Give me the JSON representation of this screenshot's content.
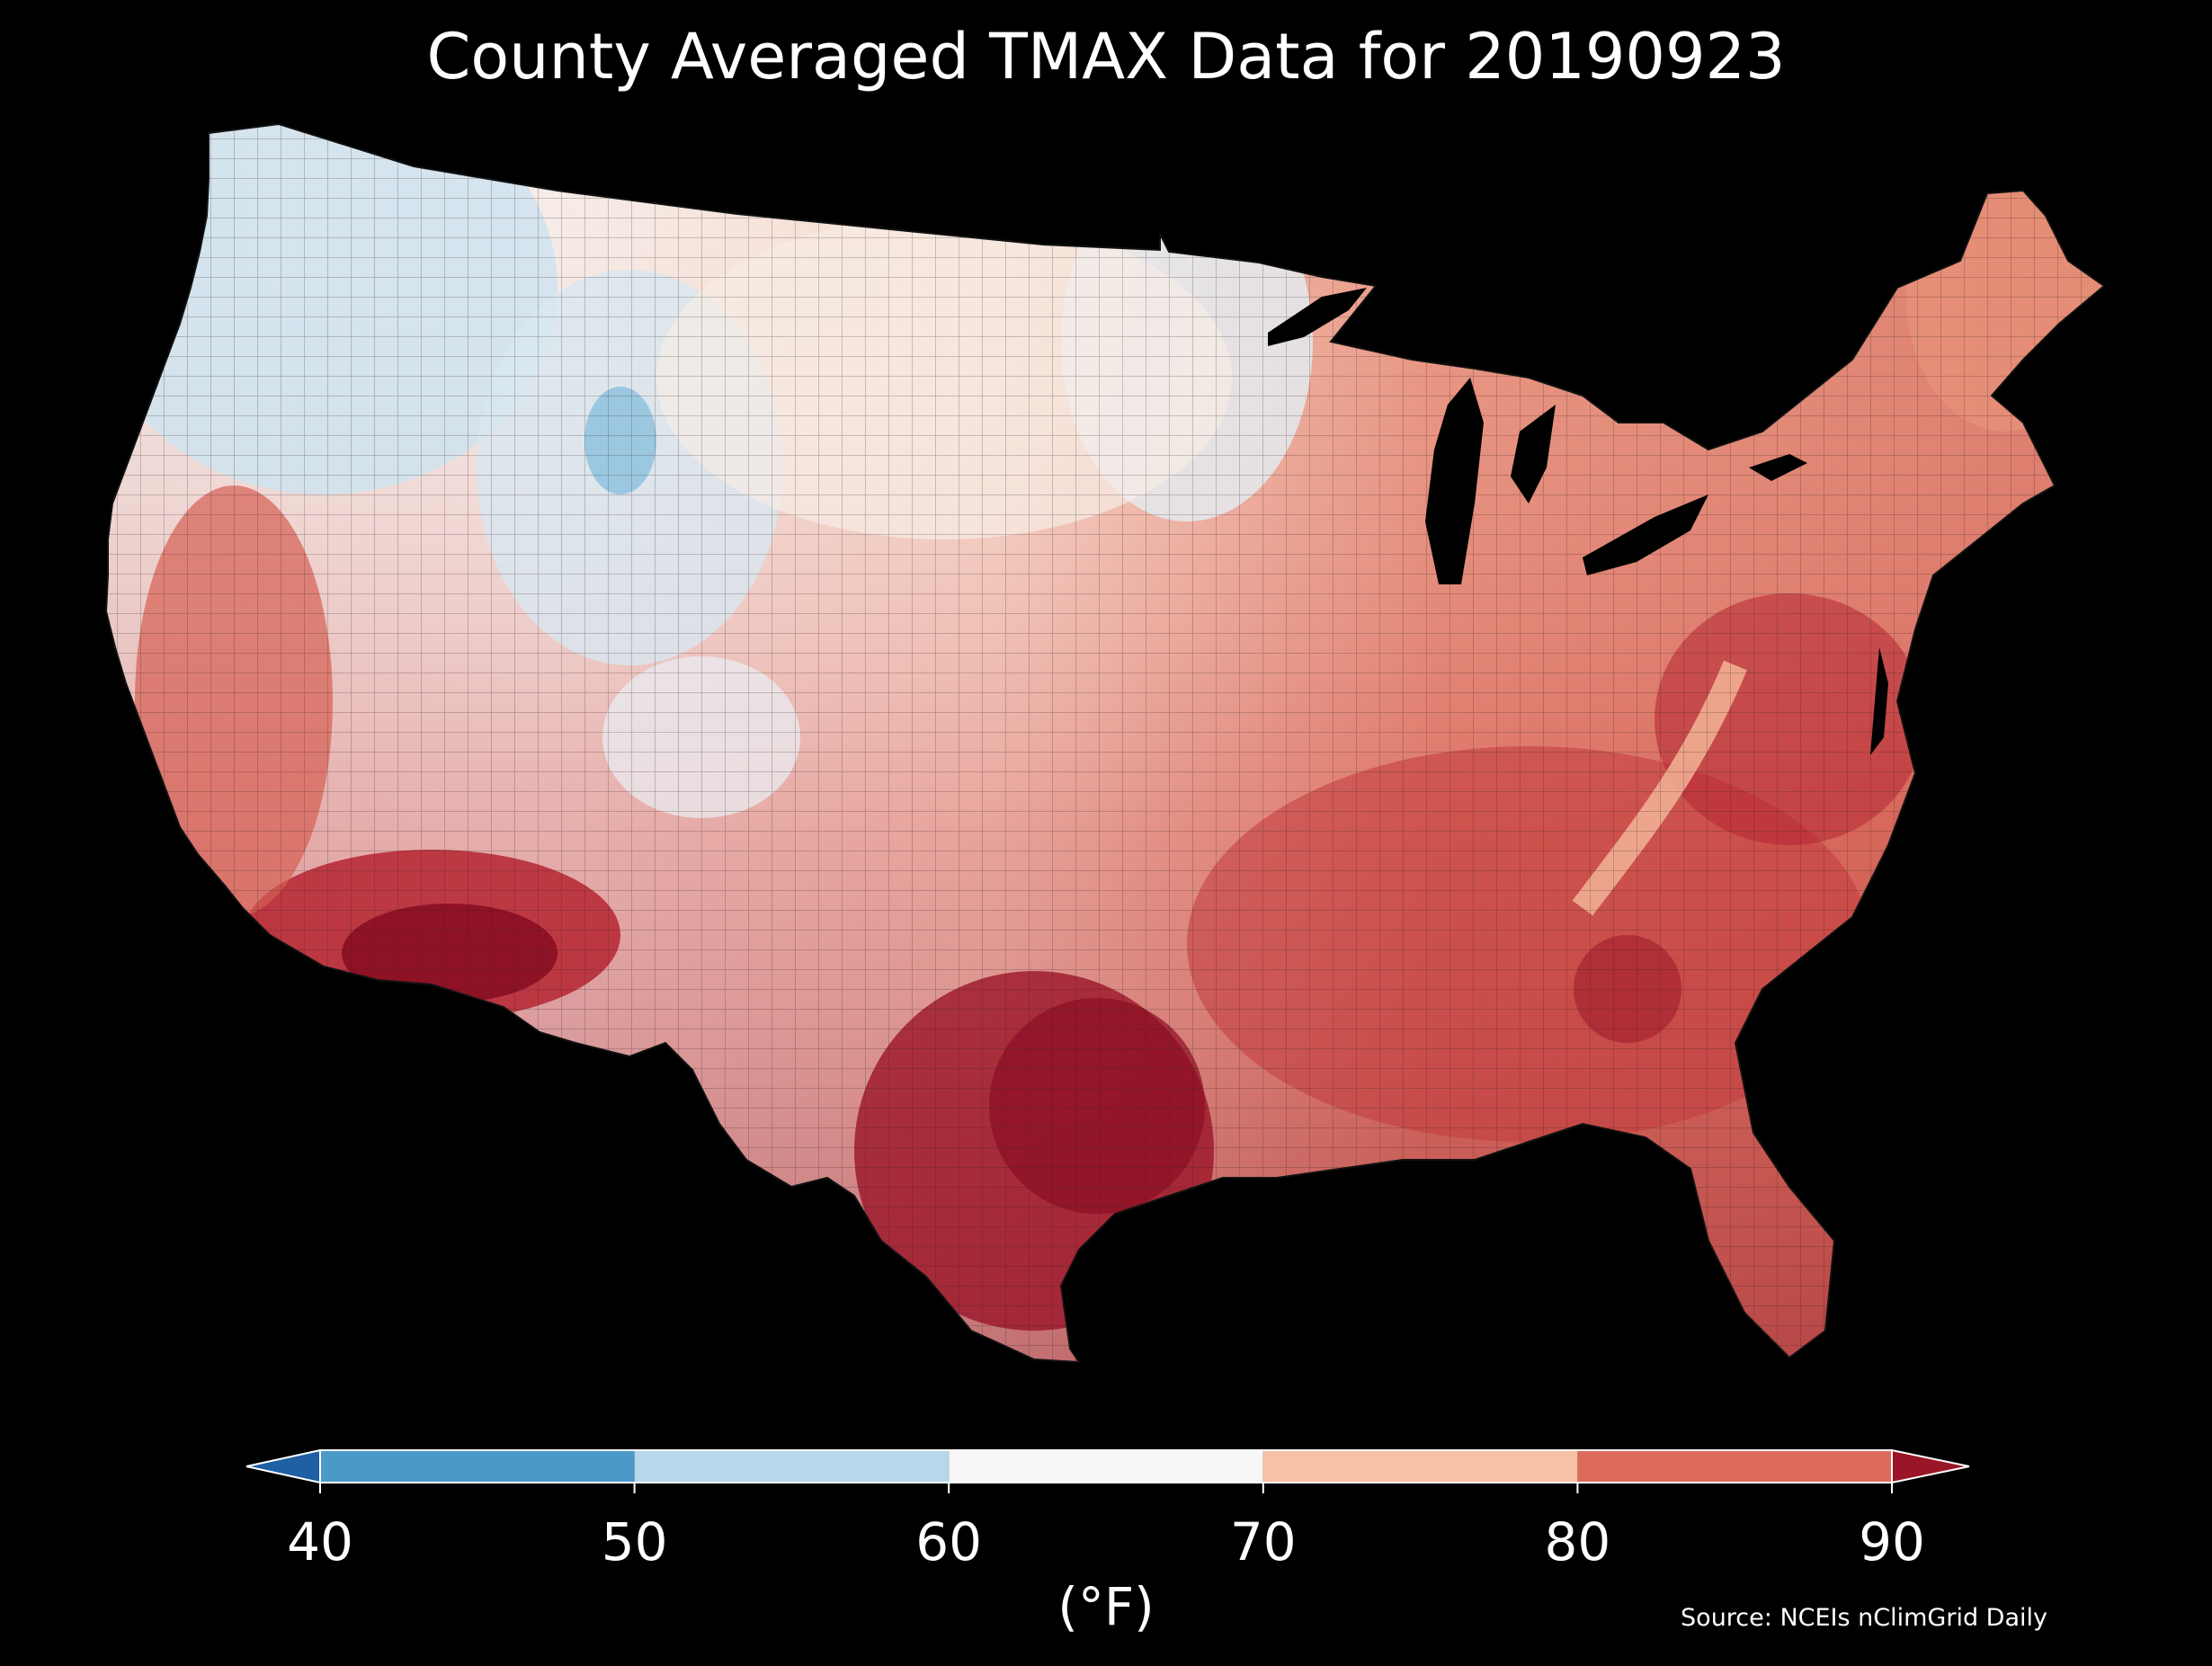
{
  "title": "County Averaged TMAX Data for 20190923",
  "colorbar": {
    "label": "(°F)",
    "ticks": [
      "40",
      "50",
      "60",
      "70",
      "80",
      "90"
    ],
    "bins": [
      {
        "range": [
          40,
          50
        ],
        "color": "#4b99c9"
      },
      {
        "range": [
          50,
          60
        ],
        "color": "#b7d8ea"
      },
      {
        "range": [
          60,
          70
        ],
        "color": "#f6f6f6"
      },
      {
        "range": [
          70,
          80
        ],
        "color": "#f8c0a4"
      },
      {
        "range": [
          80,
          90
        ],
        "color": "#dc6b5b"
      }
    ],
    "under_color": "#1f5fa3",
    "over_color": "#9b1528",
    "extend": "both"
  },
  "map": {
    "region": "Contiguous United States",
    "units": "°F",
    "colors": {
      "cool": "#cfe3ef",
      "mild": "#f4efec",
      "warm": "#f3c4aa",
      "hot": "#d65f52",
      "very_hot": "#b52431",
      "extreme": "#8a0e22",
      "background": "#000000",
      "borders": "#3a2a2a"
    }
  },
  "source": "Source: NCEIs nClimGrid Daily"
}
